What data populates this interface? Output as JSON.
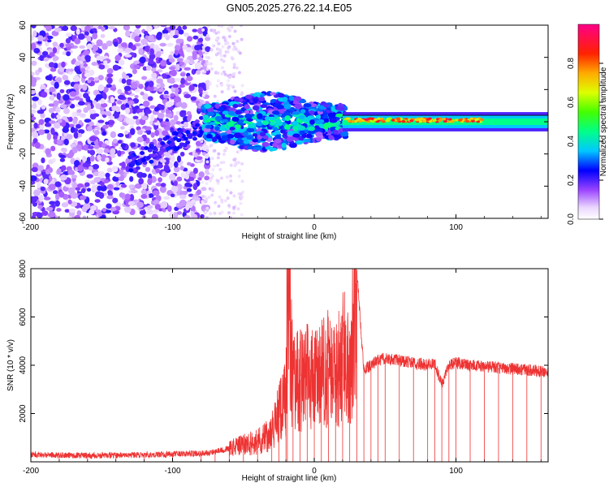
{
  "title": "GN05.2025.276.22.14.E05",
  "chart_data": [
    {
      "type": "heatmap",
      "name": "spectrogram",
      "xlabel": "Height of straight line (km)",
      "ylabel": "Frequency (Hz)",
      "xlim": [
        -200,
        165
      ],
      "ylim": [
        -60,
        60
      ],
      "x_ticks": [
        -200,
        -100,
        0,
        100
      ],
      "y_ticks": [
        -60,
        -40,
        -20,
        0,
        20,
        40,
        60
      ],
      "description_bands": [
        {
          "x_from": -200,
          "x_to": -80,
          "level": "noise",
          "amplitude": 0.15
        },
        {
          "x_from": -78,
          "x_to": 20,
          "level": "broadband signal",
          "amplitude": 0.4
        },
        {
          "x_from": 20,
          "x_to": 165,
          "level": "narrow signal near 0 Hz",
          "amplitude": 0.9
        }
      ],
      "colorbar": {
        "label": "Normalized spectral amplitude",
        "ticks": [
          0.0,
          0.2,
          0.4,
          0.6,
          0.8
        ],
        "range": [
          0,
          1
        ]
      }
    },
    {
      "type": "line",
      "name": "snr",
      "xlabel": "Height of straight line (km)",
      "ylabel": "SNR (10 * v/v)",
      "xlim": [
        -200,
        165
      ],
      "ylim": [
        0,
        8000
      ],
      "x_ticks": [
        -200,
        -100,
        0,
        100
      ],
      "y_ticks": [
        2000,
        4000,
        6000,
        8000
      ],
      "color": "#ee3333",
      "series": [
        {
          "name": "SNR",
          "x": [
            -200,
            -180,
            -160,
            -140,
            -120,
            -100,
            -80,
            -70,
            -60,
            -50,
            -40,
            -30,
            -25,
            -20,
            -19,
            -15,
            -10,
            -5,
            0,
            5,
            10,
            15,
            20,
            25,
            30,
            35,
            40,
            45,
            50,
            60,
            70,
            80,
            85,
            90,
            95,
            100,
            110,
            120,
            130,
            140,
            150,
            160,
            165
          ],
          "y": [
            300,
            280,
            260,
            270,
            290,
            320,
            350,
            420,
            550,
            700,
            850,
            1200,
            2000,
            2600,
            7500,
            3200,
            3400,
            3700,
            3300,
            3600,
            3900,
            3400,
            4500,
            3800,
            7900,
            3800,
            4000,
            4200,
            4300,
            4200,
            4100,
            4000,
            4050,
            3200,
            4000,
            4100,
            4000,
            3950,
            3900,
            3850,
            3800,
            3750,
            3700
          ]
        }
      ]
    }
  ]
}
